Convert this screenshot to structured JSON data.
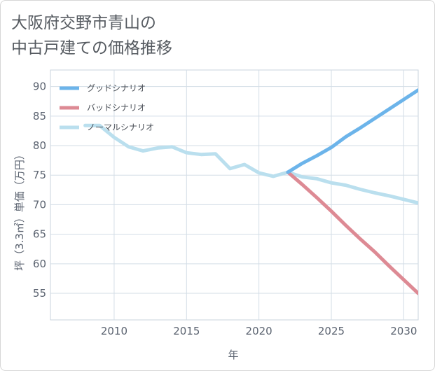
{
  "title_lines": [
    "大阪府交野市青山の",
    "中古戸建ての価格推移"
  ],
  "chart_data": {
    "type": "line",
    "xlabel": "年",
    "ylabel": "坪（3.3㎡）単価（万円）",
    "xlim": [
      2005.6,
      2031
    ],
    "ylim": [
      50.5,
      92.8
    ],
    "xticks": [
      2010,
      2015,
      2020,
      2025,
      2030
    ],
    "yticks": [
      55,
      60,
      65,
      70,
      75,
      80,
      85,
      90
    ],
    "grid": true,
    "legend_position": "top-left",
    "series": [
      {
        "name": "グッドシナリオ",
        "color": "#6cb4ea",
        "x": [
          2022,
          2023,
          2024,
          2025,
          2026,
          2027,
          2028,
          2029,
          2030,
          2031
        ],
        "y": [
          75.5,
          77.0,
          78.3,
          79.7,
          81.5,
          83.0,
          84.6,
          86.2,
          87.8,
          89.4
        ]
      },
      {
        "name": "バッドシナリオ",
        "color": "#dd8a94",
        "x": [
          2022,
          2023,
          2024,
          2025,
          2026,
          2027,
          2028,
          2029,
          2030,
          2031
        ],
        "y": [
          75.5,
          73.4,
          71.2,
          68.9,
          66.5,
          64.2,
          62.0,
          59.6,
          57.3,
          55.0
        ]
      },
      {
        "name": "ノーマルシナリオ",
        "color": "#badfee",
        "x": [
          2008,
          2009,
          2010,
          2011,
          2012,
          2013,
          2014,
          2015,
          2016,
          2017,
          2018,
          2019,
          2020,
          2021,
          2022,
          2023,
          2024,
          2025,
          2026,
          2027,
          2028,
          2029,
          2030,
          2031
        ],
        "y": [
          83.4,
          83.4,
          81.4,
          79.8,
          79.1,
          79.6,
          79.8,
          78.8,
          78.5,
          78.6,
          76.1,
          76.8,
          75.4,
          74.8,
          75.5,
          74.7,
          74.4,
          73.7,
          73.3,
          72.6,
          72.0,
          71.5,
          70.9,
          70.3
        ]
      }
    ]
  }
}
